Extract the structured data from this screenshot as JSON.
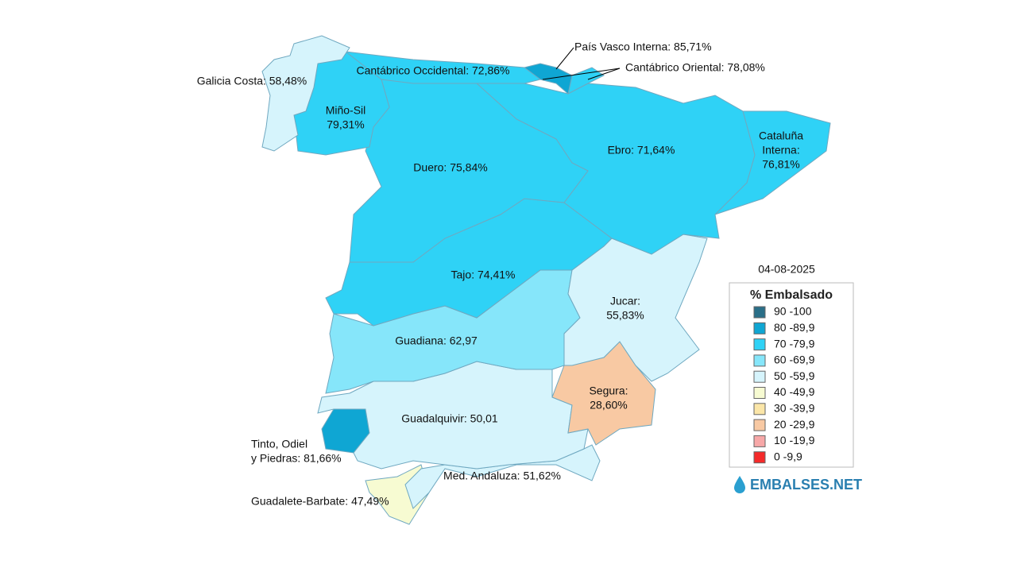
{
  "regions": [
    {
      "label": [
        "Galicia Costa: 58,48%"
      ],
      "color": "#d6f4fc"
    },
    {
      "label": [
        "Miño-Sil",
        "79,31%"
      ],
      "color": "#2fd2f6"
    },
    {
      "label": [
        "Cantábrico Occidental: 72,86%"
      ],
      "color": "#2fd2f6"
    },
    {
      "label": [
        "País Vasco Interna: 85,71%"
      ],
      "color": "#0fa6d3"
    },
    {
      "label": [
        "Cantábrico Oriental: 78,08%"
      ],
      "color": "#2fd2f6"
    },
    {
      "label": [
        "Duero: 75,84%"
      ],
      "color": "#2fd2f6"
    },
    {
      "label": [
        "Ebro: 71,64%"
      ],
      "color": "#2fd2f6"
    },
    {
      "label": [
        "Cataluña",
        "Interna:",
        "76,81%"
      ],
      "color": "#2fd2f6"
    },
    {
      "label": [
        "Tajo: 74,41%"
      ],
      "color": "#2fd2f6"
    },
    {
      "label": [
        "Jucar:",
        "55,83%"
      ],
      "color": "#d6f4fc"
    },
    {
      "label": [
        "Segura:",
        "28,60%"
      ],
      "color": "#f8c9a3"
    },
    {
      "label": [
        "Guadiana: 62,97"
      ],
      "color": "#86e6fa"
    },
    {
      "label": [
        "Guadalquivir: 50,01"
      ],
      "color": "#d6f4fc"
    },
    {
      "label": [
        "Tinto, Odiel",
        "y Piedras: 81,66%"
      ],
      "color": "#0fa6d3"
    },
    {
      "label": [
        "Med. Andaluza: 51,62%"
      ],
      "color": "#d6f4fc"
    },
    {
      "label": [
        "Guadalete-Barbate: 47,49%"
      ],
      "color": "#f7fbd2"
    }
  ],
  "legend": {
    "date": "04-08-2025",
    "title": "% Embalsado",
    "items": [
      {
        "label": "90 -100",
        "color": "#2a6f88"
      },
      {
        "label": "80 -89,9",
        "color": "#0fa6d3"
      },
      {
        "label": "70 -79,9",
        "color": "#2fd2f6"
      },
      {
        "label": "60 -69,9",
        "color": "#86e6fa"
      },
      {
        "label": "50 -59,9",
        "color": "#d6f4fc"
      },
      {
        "label": "40 -49,9",
        "color": "#f7fbd2"
      },
      {
        "label": "30 -39,9",
        "color": "#fbe6a8"
      },
      {
        "label": "20 -29,9",
        "color": "#f8c9a3"
      },
      {
        "label": "10 -19,9",
        "color": "#f7a8a8"
      },
      {
        "label": "0 -9,9",
        "color": "#f52a2a"
      }
    ]
  },
  "logo": "EMBALSES.NET"
}
